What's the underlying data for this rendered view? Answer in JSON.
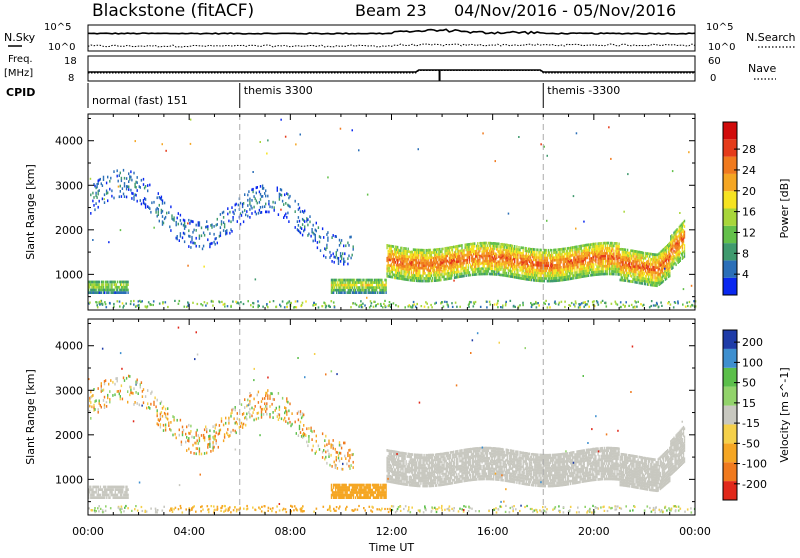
{
  "header": {
    "title": "Blackstone (fitACF)",
    "beam": "Beam 23",
    "dates": "04/Nov/2016 - 05/Nov/2016"
  },
  "top_panels": {
    "nsky_label": "N.Sky",
    "nsky_ticks": [
      "10^5",
      "10^0"
    ],
    "nsearch_label": "N.Search",
    "nsearch_ticks": [
      "10^5",
      "10^0"
    ],
    "freq_label": "Freq.",
    "freq_unit": "[MHz]",
    "freq_ticks": [
      "18",
      "8"
    ],
    "nave_label": "Nave",
    "nave_ticks": [
      "60",
      "0"
    ],
    "cpid_label": "CPID",
    "cpid_segments": [
      {
        "label": "normal (fast) 151",
        "start_hour": 0
      },
      {
        "label": "themis 3300",
        "start_hour": 6
      },
      {
        "label": "themis -3300",
        "start_hour": 18
      }
    ]
  },
  "colors": {
    "power": [
      "#0a28f0",
      "#2b6fb8",
      "#3f9a6e",
      "#63c04a",
      "#a8d63a",
      "#f6e321",
      "#f5a623",
      "#f07a1e",
      "#e53b1a",
      "#d10b0b"
    ],
    "velocity": [
      "#1f3ca8",
      "#3e8fcf",
      "#5bbf4a",
      "#92d36b",
      "#c8c8c0",
      "#f5d04a",
      "#f5a623",
      "#f07a1e",
      "#e0281a"
    ]
  },
  "chart_data": [
    {
      "type": "heatmap",
      "title": "",
      "ylabel": "Slant Range [km]",
      "xlabel": "",
      "x_ticks": [
        "00:00",
        "04:00",
        "08:00",
        "12:00",
        "16:00",
        "20:00",
        "00:00"
      ],
      "y_ticks": [
        "1000",
        "2000",
        "3000",
        "4000"
      ],
      "ylim": [
        200,
        4600
      ],
      "xlim_hours": [
        0,
        24
      ],
      "colorbar": {
        "label": "Power [dB]",
        "ticks": [
          "4",
          "8",
          "12",
          "16",
          "20",
          "24",
          "28"
        ],
        "range": [
          0,
          30
        ]
      },
      "features": [
        {
          "name": "near-range band",
          "hours": [
            0,
            1.6
          ],
          "range_km": [
            560,
            860
          ],
          "value": 14
        },
        {
          "name": "near-range band",
          "hours": [
            9.6,
            11.8
          ],
          "range_km": [
            560,
            900
          ],
          "value": 16
        },
        {
          "name": "main echo band",
          "hours": [
            11.8,
            23.6
          ],
          "range_km": [
            850,
            1700
          ],
          "value": 24
        },
        {
          "name": "high-range scatter",
          "hours": [
            0,
            10.5
          ],
          "range_km": [
            2000,
            3500
          ],
          "value": 6
        }
      ]
    },
    {
      "type": "heatmap",
      "title": "",
      "ylabel": "Slant Range [km]",
      "xlabel": "Time UT",
      "x_ticks": [
        "00:00",
        "04:00",
        "08:00",
        "12:00",
        "16:00",
        "20:00",
        "00:00"
      ],
      "y_ticks": [
        "1000",
        "2000",
        "3000",
        "4000"
      ],
      "ylim": [
        200,
        4600
      ],
      "xlim_hours": [
        0,
        24
      ],
      "colorbar": {
        "label": "Velocity [m s^-1]",
        "ticks": [
          "200",
          "100",
          "50",
          "15",
          "-15",
          "-50",
          "-100",
          "-200"
        ],
        "range": [
          -250,
          250
        ]
      },
      "features": [
        {
          "name": "near-range band",
          "hours": [
            0,
            1.6
          ],
          "range_km": [
            560,
            860
          ],
          "value": 0
        },
        {
          "name": "near-range band",
          "hours": [
            9.6,
            11.8
          ],
          "range_km": [
            560,
            900
          ],
          "value": -60
        },
        {
          "name": "main echo band",
          "hours": [
            11.8,
            23.6
          ],
          "range_km": [
            850,
            1700
          ],
          "value": 0
        },
        {
          "name": "high-range scatter",
          "hours": [
            0,
            10.5
          ],
          "range_km": [
            2000,
            3500
          ],
          "value": -40
        }
      ]
    }
  ]
}
